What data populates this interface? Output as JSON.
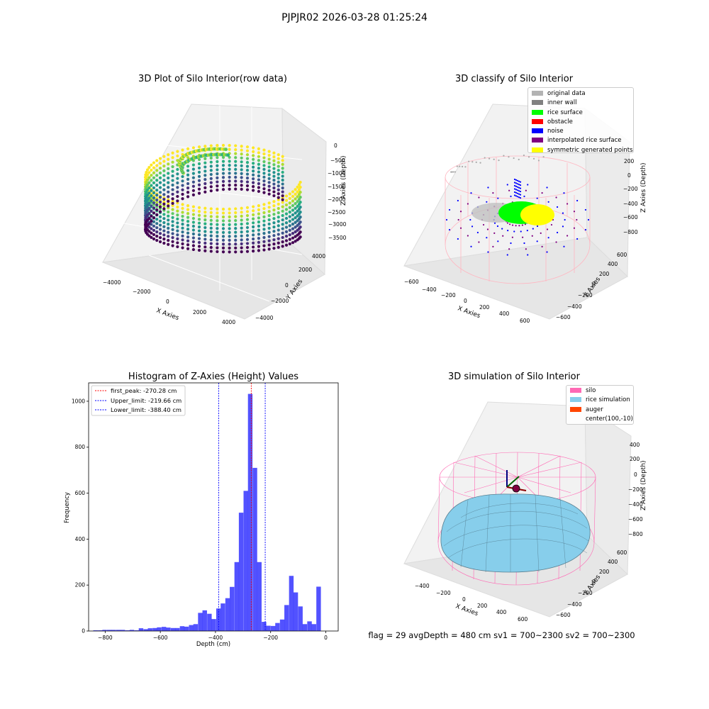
{
  "suptitle": "PJPJR02 2026-03-28 01:25:24",
  "chart_data": [
    {
      "type": "scatter",
      "title": "3D Plot of Silo Interior(row data)",
      "xlabel": "X Axies",
      "ylabel": "Y Axies",
      "zlabel": "Z Axies (Depth)",
      "xticks": [
        "−4000",
        "−2000",
        "0",
        "2000",
        "4000"
      ],
      "yticks": [
        "−4000",
        "−2000",
        "0",
        "2000",
        "4000"
      ],
      "zticks": [
        "0",
        "−500",
        "−1000",
        "−1500",
        "−2000",
        "−2500",
        "−3000",
        "−3500"
      ],
      "colormap": "viridis"
    },
    {
      "type": "scatter",
      "title": "3D classify of Silo Interior",
      "xlabel": "X Axies",
      "ylabel": "Y Axies",
      "zlabel": "Z Axies (Depth)",
      "xticks": [
        "−600",
        "−400",
        "−200",
        "0",
        "200",
        "400",
        "600"
      ],
      "yticks": [
        "−600",
        "−400",
        "−200",
        "0",
        "200",
        "400",
        "600"
      ],
      "zticks": [
        "200",
        "0",
        "−200",
        "−400",
        "−600",
        "−800"
      ],
      "legend_placement": "top-right",
      "legend": [
        {
          "label": "original data",
          "color": "#b3b3b3"
        },
        {
          "label": "inner wall",
          "color": "#808080"
        },
        {
          "label": "rice surface",
          "color": "#00ff00"
        },
        {
          "label": "obstacle",
          "color": "#ff0000"
        },
        {
          "label": "noise",
          "color": "#0000ff"
        },
        {
          "label": "interpolated rice surface",
          "color": "#800080"
        },
        {
          "label": "symmetric generated points",
          "color": "#ffff00"
        }
      ]
    },
    {
      "type": "bar",
      "title": "Histogram of Z-Axies (Height) Values",
      "xlabel": "Depth (cm)",
      "ylabel": "Frequency",
      "xlim": [
        -860,
        45
      ],
      "ylim": [
        0,
        1080
      ],
      "xticks": [
        -800,
        -600,
        -400,
        -200,
        0
      ],
      "xtick_labels": [
        "−800",
        "−600",
        "−400",
        "−200",
        "0"
      ],
      "yticks": [
        0,
        200,
        400,
        600,
        800,
        1000
      ],
      "bin_width": 16.5,
      "bins": [
        [
          -835,
          3
        ],
        [
          -818,
          3
        ],
        [
          -802,
          5
        ],
        [
          -785,
          5
        ],
        [
          -769,
          5
        ],
        [
          -752,
          5
        ],
        [
          -736,
          5
        ],
        [
          -719,
          3
        ],
        [
          -703,
          5
        ],
        [
          -686,
          3
        ],
        [
          -670,
          12
        ],
        [
          -653,
          8
        ],
        [
          -637,
          12
        ],
        [
          -620,
          13
        ],
        [
          -604,
          16
        ],
        [
          -587,
          18
        ],
        [
          -571,
          15
        ],
        [
          -554,
          13
        ],
        [
          -538,
          13
        ],
        [
          -521,
          21
        ],
        [
          -505,
          19
        ],
        [
          -488,
          26
        ],
        [
          -472,
          30
        ],
        [
          -455,
          79
        ],
        [
          -439,
          90
        ],
        [
          -422,
          75
        ],
        [
          -406,
          52
        ],
        [
          -389,
          98
        ],
        [
          -373,
          120
        ],
        [
          -356,
          143
        ],
        [
          -340,
          192
        ],
        [
          -323,
          300
        ],
        [
          -307,
          515
        ],
        [
          -290,
          610
        ],
        [
          -274,
          1032
        ],
        [
          -257,
          710
        ],
        [
          -241,
          300
        ],
        [
          -224,
          40
        ],
        [
          -208,
          23
        ],
        [
          -191,
          22
        ],
        [
          -175,
          35
        ],
        [
          -158,
          50
        ],
        [
          -142,
          113
        ],
        [
          -125,
          240
        ],
        [
          -109,
          168
        ],
        [
          -92,
          107
        ],
        [
          -76,
          30
        ],
        [
          -59,
          42
        ],
        [
          -43,
          30
        ],
        [
          -26,
          193
        ]
      ],
      "bar_color": "#0000ff",
      "vlines": [
        {
          "label": "first_peak: -270.28 cm",
          "x": -270.28,
          "color": "#ff0000"
        },
        {
          "label": "Upper_limit: -219.66 cm",
          "x": -219.66,
          "color": "#0000ff"
        },
        {
          "label": "Lower_limit: -388.40 cm",
          "x": -388.4,
          "color": "#0000ff"
        }
      ],
      "legend_placement": "top-left"
    },
    {
      "type": "surface",
      "title": "3D simulation of Silo Interior",
      "xlabel": "X Axies",
      "ylabel": "Y Axies",
      "zlabel": "Z Axies (Depth)",
      "xticks": [
        "−400",
        "−200",
        "0",
        "200",
        "400",
        "600"
      ],
      "yticks": [
        "−600",
        "−400",
        "−200",
        "0",
        "200",
        "400",
        "600"
      ],
      "zticks": [
        "400",
        "200",
        "0",
        "−200",
        "−400",
        "−600",
        "−800"
      ],
      "legend_placement": "top-right",
      "legend": [
        {
          "label": "silo",
          "color": "#ff69b4"
        },
        {
          "label": "rice simulation",
          "color": "#87ceeb"
        },
        {
          "label": "auger",
          "color": "#ff4500"
        },
        {
          "label": "center(100,-10)",
          "color": ""
        }
      ]
    }
  ],
  "footer": "flag = 29  avgDepth = 480 cm  sv1 = 700~2300  sv2 = 700~2300"
}
